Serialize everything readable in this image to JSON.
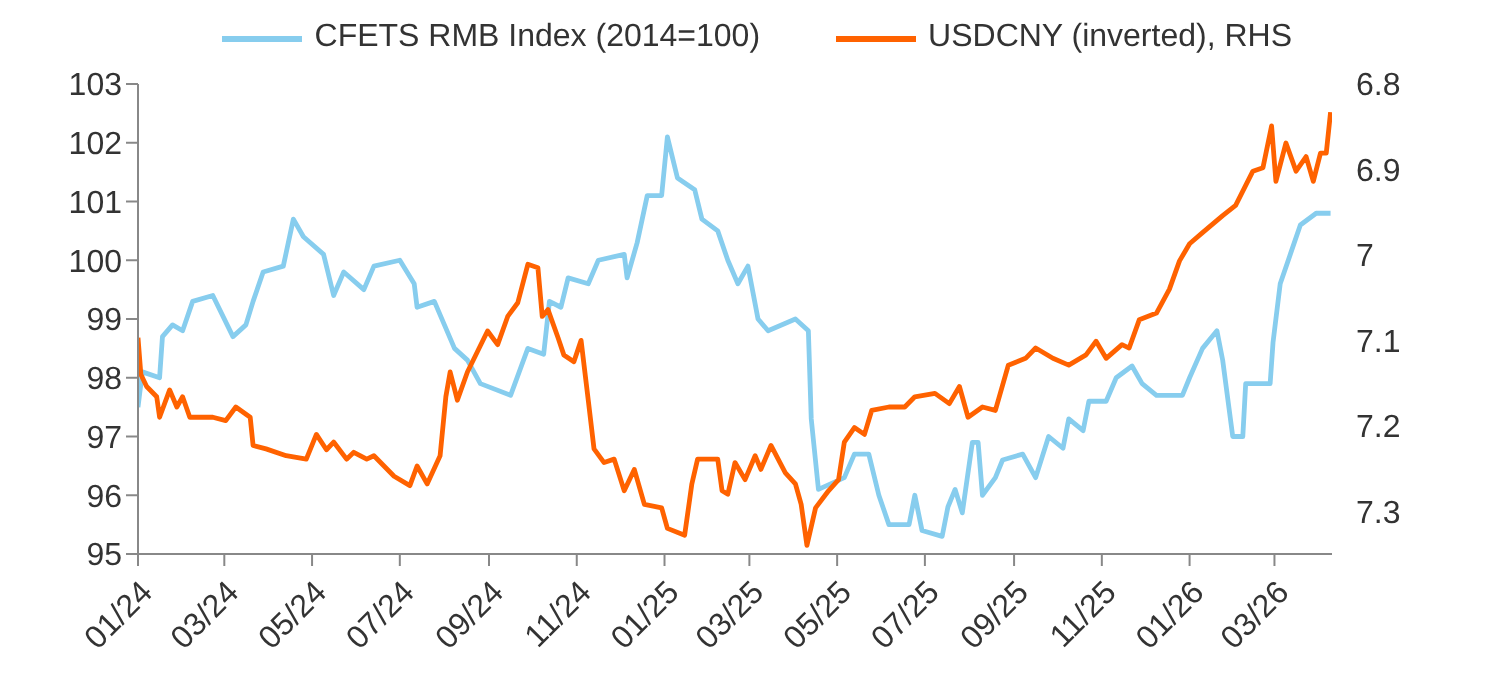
{
  "chart_data": {
    "type": "line",
    "xlim": [
      "2024-01-01",
      "2026-04-10"
    ],
    "xticks": [
      {
        "value": "2024-01-01",
        "label": "01/24"
      },
      {
        "value": "2024-03-01",
        "label": "03/24"
      },
      {
        "value": "2024-05-01",
        "label": "05/24"
      },
      {
        "value": "2024-07-01",
        "label": "07/24"
      },
      {
        "value": "2024-09-01",
        "label": "09/24"
      },
      {
        "value": "2024-11-01",
        "label": "11/24"
      },
      {
        "value": "2025-01-01",
        "label": "01/25"
      },
      {
        "value": "2025-03-01",
        "label": "03/25"
      },
      {
        "value": "2025-05-01",
        "label": "05/25"
      },
      {
        "value": "2025-07-01",
        "label": "07/25"
      },
      {
        "value": "2025-09-01",
        "label": "09/25"
      },
      {
        "value": "2025-11-01",
        "label": "11/25"
      },
      {
        "value": "2026-01-01",
        "label": "01/26"
      },
      {
        "value": "2026-03-01",
        "label": "03/26"
      }
    ],
    "ylim": [
      95,
      103
    ],
    "yticks": [
      95,
      96,
      97,
      98,
      99,
      100,
      101,
      102,
      103
    ],
    "y2lim": [
      7.35,
      6.8
    ],
    "y2ticks": [
      6.8,
      6.9,
      7,
      7.1,
      7.2,
      7.3
    ],
    "grid": false,
    "legend": "top",
    "marker": "none",
    "line_style": "solid",
    "series": [
      {
        "name": "CFETS RMB Index (2014=100)",
        "color": "#87cdee",
        "x": [
          "2024-01-01",
          "2024-01-04",
          "2024-01-16",
          "2024-01-18",
          "2024-01-25",
          "2024-02-01",
          "2024-02-08",
          "2024-02-22",
          "2024-03-07",
          "2024-03-16",
          "2024-03-21",
          "2024-03-28",
          "2024-04-11",
          "2024-04-18",
          "2024-04-25",
          "2024-05-09",
          "2024-05-16",
          "2024-05-23",
          "2024-06-06",
          "2024-06-13",
          "2024-07-01",
          "2024-07-11",
          "2024-07-13",
          "2024-07-25",
          "2024-08-01",
          "2024-08-08",
          "2024-08-17",
          "2024-08-26",
          "2024-09-16",
          "2024-09-28",
          "2024-10-09",
          "2024-10-13",
          "2024-10-21",
          "2024-10-26",
          "2024-11-09",
          "2024-11-16",
          "2024-12-04",
          "2024-12-06",
          "2024-12-13",
          "2024-12-20",
          "2024-12-30",
          "2025-01-03",
          "2025-01-10",
          "2025-01-22",
          "2025-01-27",
          "2025-02-07",
          "2025-02-14",
          "2025-02-21",
          "2025-02-28",
          "2025-03-07",
          "2025-03-14",
          "2025-04-02",
          "2025-04-11",
          "2025-04-13",
          "2025-04-18",
          "2025-05-06",
          "2025-05-13",
          "2025-05-23",
          "2025-05-30",
          "2025-06-06",
          "2025-06-20",
          "2025-06-24",
          "2025-06-29",
          "2025-07-13",
          "2025-07-17",
          "2025-07-22",
          "2025-07-27",
          "2025-08-03",
          "2025-08-07",
          "2025-08-10",
          "2025-08-19",
          "2025-08-24",
          "2025-09-07",
          "2025-09-16",
          "2025-09-25",
          "2025-10-05",
          "2025-10-09",
          "2025-10-19",
          "2025-10-23",
          "2025-11-04",
          "2025-11-11",
          "2025-11-22",
          "2025-11-29",
          "2025-12-09",
          "2025-12-27",
          "2026-01-01",
          "2026-01-10",
          "2026-01-20",
          "2026-01-24",
          "2026-01-31",
          "2026-02-07",
          "2026-02-09",
          "2026-02-26",
          "2026-02-28",
          "2026-03-05",
          "2026-03-12",
          "2026-03-19",
          "2026-03-30",
          "2026-04-09"
        ],
        "values": [
          97.5,
          98.1,
          98.0,
          98.7,
          98.9,
          98.8,
          99.3,
          99.4,
          98.7,
          98.9,
          99.3,
          99.8,
          99.9,
          100.7,
          100.4,
          100.1,
          99.4,
          99.8,
          99.5,
          99.9,
          100.0,
          99.6,
          99.2,
          99.3,
          98.9,
          98.5,
          98.3,
          97.9,
          97.7,
          98.5,
          98.4,
          99.3,
          99.2,
          99.7,
          99.6,
          100.0,
          100.1,
          99.7,
          100.3,
          101.1,
          101.1,
          102.1,
          101.4,
          101.2,
          100.7,
          100.5,
          100.0,
          99.6,
          99.9,
          99.0,
          98.8,
          99.0,
          98.8,
          97.3,
          96.1,
          96.3,
          96.7,
          96.7,
          96.0,
          95.5,
          95.5,
          96.0,
          95.4,
          95.3,
          95.8,
          96.1,
          95.7,
          96.9,
          96.9,
          96.0,
          96.3,
          96.6,
          96.7,
          96.3,
          97.0,
          96.8,
          97.3,
          97.1,
          97.6,
          97.6,
          98.0,
          98.2,
          97.9,
          97.7,
          97.7,
          98.0,
          98.5,
          98.8,
          98.3,
          97.0,
          97.0,
          97.9,
          97.9,
          98.6,
          99.6,
          100.1,
          100.6,
          100.8,
          100.8
        ]
      },
      {
        "name": "USDCNY (inverted), RHS",
        "color": "#ff6200",
        "axis": "y2",
        "x": [
          "2024-01-01",
          "2024-01-03",
          "2024-01-07",
          "2024-01-14",
          "2024-01-16",
          "2024-01-23",
          "2024-01-28",
          "2024-02-01",
          "2024-02-06",
          "2024-02-22",
          "2024-03-02",
          "2024-03-09",
          "2024-03-19",
          "2024-03-21",
          "2024-03-30",
          "2024-04-13",
          "2024-04-27",
          "2024-05-04",
          "2024-05-11",
          "2024-05-16",
          "2024-05-25",
          "2024-05-30",
          "2024-06-08",
          "2024-06-13",
          "2024-06-27",
          "2024-07-08",
          "2024-07-13",
          "2024-07-20",
          "2024-07-29",
          "2024-08-02",
          "2024-08-05",
          "2024-08-10",
          "2024-08-17",
          "2024-08-24",
          "2024-08-31",
          "2024-09-07",
          "2024-09-14",
          "2024-09-21",
          "2024-09-28",
          "2024-10-05",
          "2024-10-08",
          "2024-10-12",
          "2024-10-19",
          "2024-10-23",
          "2024-10-30",
          "2024-11-04",
          "2024-11-09",
          "2024-11-13",
          "2024-11-20",
          "2024-11-27",
          "2024-12-04",
          "2024-12-11",
          "2024-12-18",
          "2024-12-30",
          "2025-01-03",
          "2025-01-15",
          "2025-01-20",
          "2025-01-24",
          "2025-02-07",
          "2025-02-10",
          "2025-02-14",
          "2025-02-19",
          "2025-02-26",
          "2025-03-05",
          "2025-03-09",
          "2025-03-16",
          "2025-03-26",
          "2025-04-02",
          "2025-04-06",
          "2025-04-10",
          "2025-04-16",
          "2025-04-25",
          "2025-05-02",
          "2025-05-06",
          "2025-05-13",
          "2025-05-20",
          "2025-05-25",
          "2025-06-06",
          "2025-06-17",
          "2025-06-24",
          "2025-07-08",
          "2025-07-18",
          "2025-07-25",
          "2025-07-31",
          "2025-08-10",
          "2025-08-19",
          "2025-08-28",
          "2025-09-09",
          "2025-09-16",
          "2025-09-28",
          "2025-10-09",
          "2025-10-21",
          "2025-10-28",
          "2025-11-04",
          "2025-11-15",
          "2025-11-20",
          "2025-11-27",
          "2025-12-09",
          "2025-12-18",
          "2025-12-25",
          "2026-01-01",
          "2026-01-10",
          "2026-01-24",
          "2026-02-02",
          "2026-02-14",
          "2026-02-21",
          "2026-02-27",
          "2026-03-02",
          "2026-03-09",
          "2026-03-16",
          "2026-03-23",
          "2026-03-28",
          "2026-04-02",
          "2026-04-06",
          "2026-04-09"
        ],
        "values": [
          7.097,
          7.14,
          7.154,
          7.166,
          7.19,
          7.158,
          7.178,
          7.166,
          7.19,
          7.19,
          7.194,
          7.178,
          7.19,
          7.223,
          7.227,
          7.235,
          7.239,
          7.21,
          7.228,
          7.219,
          7.239,
          7.231,
          7.239,
          7.235,
          7.259,
          7.27,
          7.247,
          7.268,
          7.235,
          7.166,
          7.137,
          7.17,
          7.137,
          7.113,
          7.089,
          7.105,
          7.072,
          7.056,
          7.011,
          7.015,
          7.072,
          7.064,
          7.097,
          7.117,
          7.125,
          7.1,
          7.17,
          7.227,
          7.243,
          7.239,
          7.276,
          7.251,
          7.292,
          7.296,
          7.32,
          7.328,
          7.268,
          7.239,
          7.239,
          7.276,
          7.28,
          7.243,
          7.263,
          7.235,
          7.251,
          7.223,
          7.255,
          7.268,
          7.292,
          7.34,
          7.296,
          7.276,
          7.263,
          7.219,
          7.202,
          7.21,
          7.182,
          7.178,
          7.178,
          7.166,
          7.162,
          7.174,
          7.154,
          7.19,
          7.178,
          7.182,
          7.129,
          7.121,
          7.109,
          7.121,
          7.129,
          7.117,
          7.101,
          7.121,
          7.105,
          7.109,
          7.076,
          7.068,
          7.04,
          7.007,
          6.987,
          6.974,
          6.954,
          6.942,
          6.902,
          6.898,
          6.849,
          6.914,
          6.869,
          6.902,
          6.885,
          6.914,
          6.881,
          6.881,
          6.833
        ]
      }
    ]
  }
}
